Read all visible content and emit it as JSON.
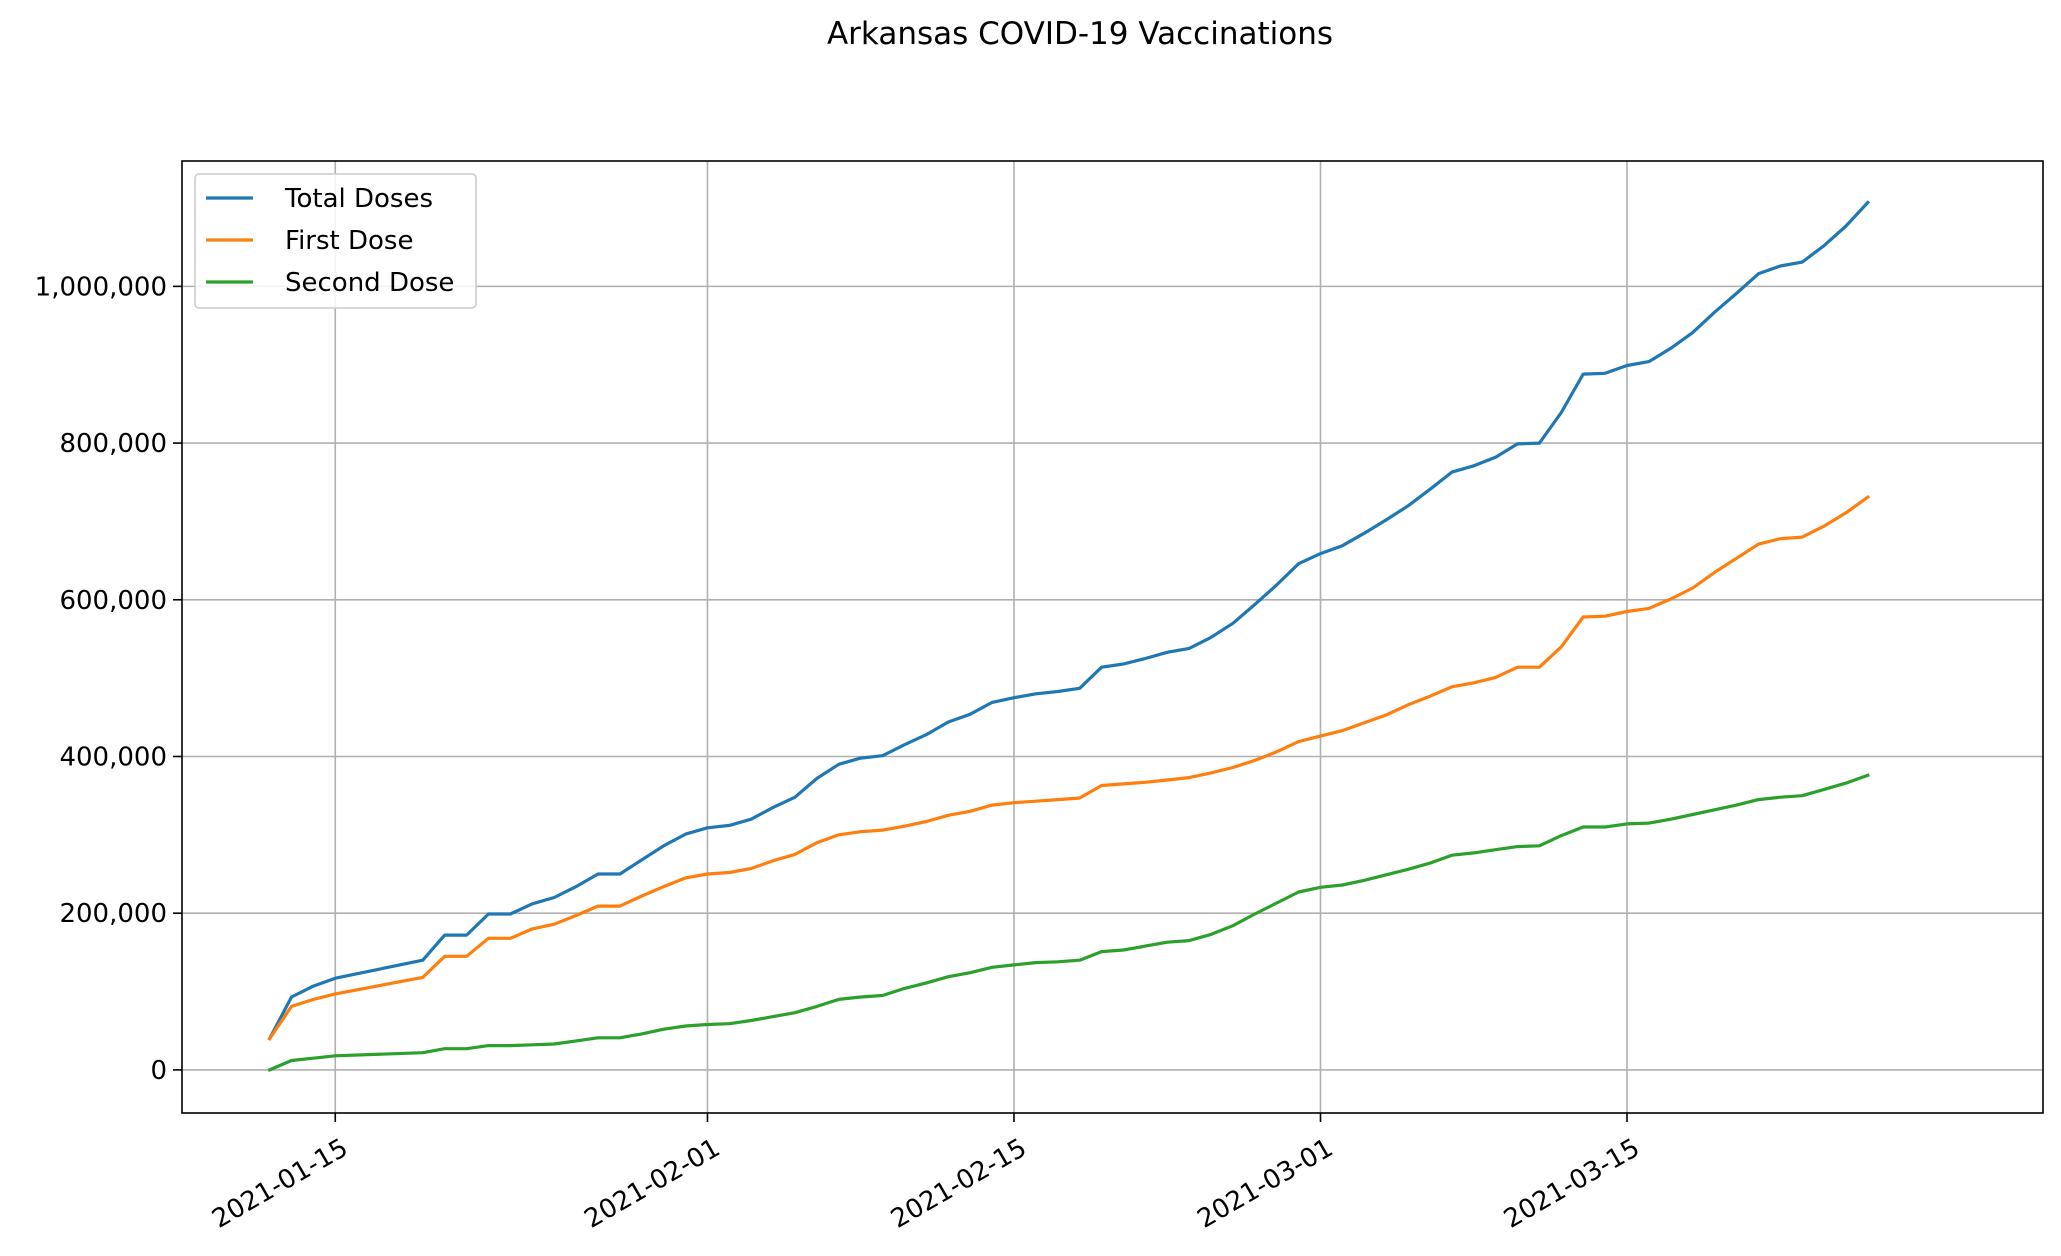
{
  "chart_data": {
    "type": "line",
    "title": "Arkansas COVID-19 Vaccinations",
    "xlabel": "",
    "ylabel": "",
    "xlim": [
      "2021-01-08",
      "2021-04-03"
    ],
    "ylim": [
      -55000,
      1160000
    ],
    "x_ticks": [
      "2021-01-15",
      "2021-02-01",
      "2021-02-15",
      "2021-03-01",
      "2021-03-15"
    ],
    "y_ticks": [
      0,
      200000,
      400000,
      600000,
      800000,
      1000000
    ],
    "y_tick_labels": [
      "0",
      "200,000",
      "400,000",
      "600,000",
      "800,000",
      "1,000,000"
    ],
    "grid": true,
    "legend_position": "upper-left",
    "x": [
      "2021-01-12",
      "2021-01-13",
      "2021-01-14",
      "2021-01-15",
      "2021-01-19",
      "2021-01-20",
      "2021-01-21",
      "2021-01-22",
      "2021-01-23",
      "2021-01-24",
      "2021-01-25",
      "2021-01-26",
      "2021-01-27",
      "2021-01-28",
      "2021-01-29",
      "2021-01-30",
      "2021-01-31",
      "2021-02-01",
      "2021-02-02",
      "2021-02-03",
      "2021-02-04",
      "2021-02-05",
      "2021-02-06",
      "2021-02-07",
      "2021-02-08",
      "2021-02-09",
      "2021-02-10",
      "2021-02-11",
      "2021-02-12",
      "2021-02-13",
      "2021-02-14",
      "2021-02-15",
      "2021-02-16",
      "2021-02-17",
      "2021-02-18",
      "2021-02-19",
      "2021-02-20",
      "2021-02-21",
      "2021-02-22",
      "2021-02-23",
      "2021-02-24",
      "2021-02-25",
      "2021-02-26",
      "2021-02-27",
      "2021-02-28",
      "2021-03-01",
      "2021-03-02",
      "2021-03-03",
      "2021-03-04",
      "2021-03-05",
      "2021-03-06",
      "2021-03-07",
      "2021-03-08",
      "2021-03-09",
      "2021-03-10",
      "2021-03-11",
      "2021-03-12",
      "2021-03-13",
      "2021-03-14",
      "2021-03-15",
      "2021-03-16",
      "2021-03-17",
      "2021-03-18",
      "2021-03-19",
      "2021-03-20",
      "2021-03-21",
      "2021-03-22",
      "2021-03-23",
      "2021-03-24",
      "2021-03-25",
      "2021-03-26"
    ],
    "series": [
      {
        "name": "Total Doses",
        "color": "#1f77b4",
        "values": [
          40000,
          93000,
          107000,
          117000,
          140000,
          172000,
          172000,
          199000,
          199000,
          212000,
          220000,
          234000,
          250000,
          250000,
          268000,
          286000,
          301000,
          309000,
          312000,
          320000,
          335000,
          348000,
          372000,
          390000,
          398000,
          401000,
          415000,
          428000,
          444000,
          454000,
          469000,
          475000,
          480000,
          483000,
          487000,
          514000,
          518000,
          525000,
          533000,
          538000,
          552000,
          570000,
          594000,
          619000,
          646000,
          659000,
          669000,
          685000,
          702000,
          720000,
          741000,
          763000,
          771000,
          782000,
          799000,
          800000,
          839000,
          888000,
          889000,
          899000,
          904000,
          921000,
          941000,
          967000,
          991000,
          1016000,
          1026000,
          1031000,
          1052000,
          1077000,
          1107000
        ]
      },
      {
        "name": "First Dose",
        "color": "#ff7f0e",
        "values": [
          40000,
          81000,
          90000,
          97000,
          118000,
          145000,
          145000,
          168000,
          168000,
          180000,
          186000,
          197000,
          209000,
          209000,
          222000,
          234000,
          245000,
          250000,
          252000,
          257000,
          267000,
          275000,
          290000,
          300000,
          304000,
          306000,
          311000,
          317000,
          325000,
          330000,
          338000,
          341000,
          343000,
          345000,
          347000,
          363000,
          365000,
          367000,
          370000,
          373000,
          379000,
          386000,
          395000,
          406000,
          419000,
          426000,
          433000,
          443000,
          453000,
          466000,
          477000,
          489000,
          494000,
          501000,
          514000,
          514000,
          540000,
          578000,
          579000,
          585000,
          589000,
          601000,
          615000,
          635000,
          653000,
          671000,
          678000,
          680000,
          694000,
          711000,
          731000
        ]
      },
      {
        "name": "Second Dose",
        "color": "#2ca02c",
        "values": [
          0,
          12000,
          15000,
          18000,
          22000,
          27000,
          27000,
          31000,
          31000,
          32000,
          33000,
          37000,
          41000,
          41000,
          46000,
          52000,
          56000,
          58000,
          59000,
          63000,
          68000,
          73000,
          81000,
          90000,
          93000,
          95000,
          104000,
          111000,
          119000,
          124000,
          131000,
          134000,
          137000,
          138000,
          140000,
          151000,
          153000,
          158000,
          163000,
          165000,
          173000,
          184000,
          199000,
          213000,
          227000,
          233000,
          236000,
          242000,
          249000,
          256000,
          264000,
          274000,
          277000,
          281000,
          285000,
          286000,
          299000,
          310000,
          310000,
          314000,
          315000,
          320000,
          326000,
          332000,
          338000,
          345000,
          348000,
          350000,
          358000,
          366000,
          376000
        ]
      }
    ]
  }
}
